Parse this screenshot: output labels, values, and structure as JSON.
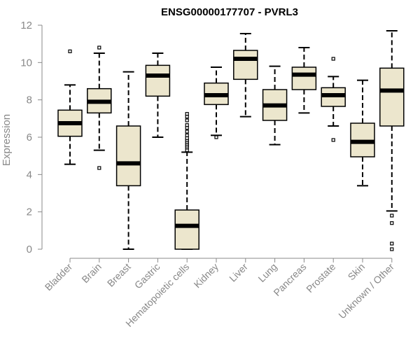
{
  "chart_data": {
    "type": "boxplot",
    "title": "ENSG00000177707 - PVRL3",
    "xlabel": "",
    "ylabel": "Expression",
    "ylim": [
      0,
      12
    ],
    "yticks": [
      0,
      2,
      4,
      6,
      8,
      10,
      12
    ],
    "grid": false,
    "box_color": "#ece6cd",
    "categories": [
      "Bladder",
      "Brain",
      "Breast",
      "Gastric",
      "Hematopoietic cells",
      "Kidney",
      "Liver",
      "Lung",
      "Pancreas",
      "Prostate",
      "Skin",
      "Unknown / Other"
    ],
    "boxes": [
      {
        "name": "Bladder",
        "whisker_low": 4.55,
        "q1": 6.05,
        "median": 6.75,
        "q3": 7.45,
        "whisker_high": 8.8,
        "outliers": [
          10.6
        ]
      },
      {
        "name": "Brain",
        "whisker_low": 5.3,
        "q1": 7.3,
        "median": 7.9,
        "q3": 8.6,
        "whisker_high": 10.5,
        "outliers": [
          4.35,
          10.8
        ]
      },
      {
        "name": "Breast",
        "whisker_low": 0.0,
        "q1": 3.4,
        "median": 4.6,
        "q3": 6.6,
        "whisker_high": 9.5,
        "outliers": []
      },
      {
        "name": "Gastric",
        "whisker_low": 6.0,
        "q1": 8.2,
        "median": 9.3,
        "q3": 9.85,
        "whisker_high": 10.5,
        "outliers": []
      },
      {
        "name": "Hematopoietic cells",
        "whisker_low": 0.0,
        "q1": 0.0,
        "median": 1.25,
        "q3": 2.1,
        "whisker_high": 5.2,
        "outliers": [
          5.3,
          5.45,
          5.55,
          5.65,
          5.75,
          5.85,
          5.95,
          6.1,
          6.3,
          6.5,
          6.65,
          6.9,
          7.1,
          7.25
        ]
      },
      {
        "name": "Kidney",
        "whisker_low": 6.1,
        "q1": 7.75,
        "median": 8.25,
        "q3": 8.9,
        "whisker_high": 9.75,
        "outliers": [
          6.0
        ]
      },
      {
        "name": "Liver",
        "whisker_low": 7.1,
        "q1": 9.1,
        "median": 10.2,
        "q3": 10.65,
        "whisker_high": 11.55,
        "outliers": []
      },
      {
        "name": "Lung",
        "whisker_low": 5.6,
        "q1": 6.9,
        "median": 7.7,
        "q3": 8.55,
        "whisker_high": 9.8,
        "outliers": []
      },
      {
        "name": "Pancreas",
        "whisker_low": 7.3,
        "q1": 8.55,
        "median": 9.35,
        "q3": 9.75,
        "whisker_high": 10.8,
        "outliers": []
      },
      {
        "name": "Prostate",
        "whisker_low": 6.6,
        "q1": 7.65,
        "median": 8.25,
        "q3": 8.65,
        "whisker_high": 9.25,
        "outliers": [
          5.85,
          10.2
        ]
      },
      {
        "name": "Skin",
        "whisker_low": 3.4,
        "q1": 4.95,
        "median": 5.75,
        "q3": 6.75,
        "whisker_high": 9.05,
        "outliers": []
      },
      {
        "name": "Unknown / Other",
        "whisker_low": 2.05,
        "q1": 6.6,
        "median": 8.5,
        "q3": 9.7,
        "whisker_high": 11.7,
        "outliers": [
          0.0,
          0.3,
          1.4,
          1.8
        ]
      }
    ]
  }
}
